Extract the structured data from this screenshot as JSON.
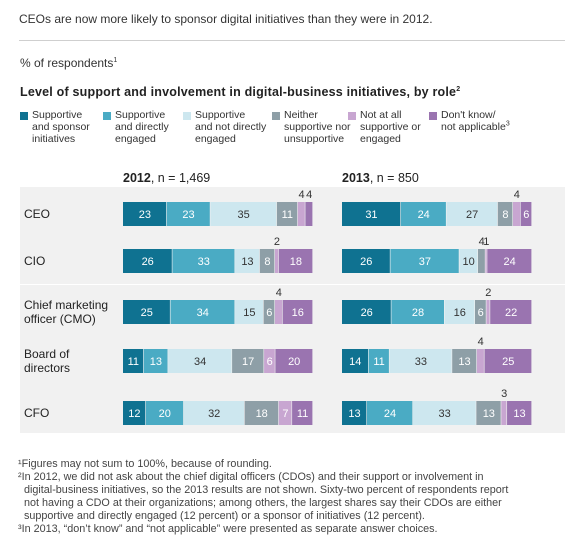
{
  "headline": "CEOs are now more likely to sponsor digital initiatives than they were in 2012.",
  "unit_label": "% of respondents",
  "unit_note": "1",
  "chart_title": "Level of support and involvement in digital-business initiatives, by role",
  "chart_title_note": "2",
  "colors": {
    "supportive_sponsor": "#0f7291",
    "directly_engaged": "#4aabc4",
    "not_directly": "#cde7ef",
    "neither": "#8e9fa7",
    "not_at_all": "#c8a6d1",
    "dont_know": "#9a74b0",
    "band": "#f1f1f1"
  },
  "legend": [
    {
      "lines": [
        "Supportive",
        "and sponsor",
        "initiatives"
      ],
      "color": "#0f7291"
    },
    {
      "lines": [
        "Supportive",
        "and directly",
        "engaged"
      ],
      "color": "#4aabc4"
    },
    {
      "lines": [
        "Supportive",
        "and not directly",
        "engaged"
      ],
      "color": "#cde7ef"
    },
    {
      "lines": [
        "Neither",
        "supportive nor",
        "unsupportive"
      ],
      "color": "#8e9fa7"
    },
    {
      "lines": [
        "Not at all",
        "supportive or",
        "engaged"
      ],
      "color": "#c8a6d1"
    },
    {
      "lines": [
        "Don't know/",
        "not applicable"
      ],
      "note": "3",
      "color": "#9a74b0"
    }
  ],
  "chart_data": {
    "type": "bar",
    "stacked": true,
    "orientation": "horizontal",
    "title": "Level of support and involvement in digital-business initiatives, by role",
    "categories": [
      "CEO",
      "CIO",
      "Chief marketing officer (CMO)",
      "Board of directors",
      "CFO"
    ],
    "category_lines": [
      [
        "CEO"
      ],
      [
        "CIO"
      ],
      [
        "Chief marketing",
        "officer (CMO)"
      ],
      [
        "Board of",
        "directors"
      ],
      [
        "CFO"
      ]
    ],
    "series_names": [
      "Supportive and sponsor initiatives",
      "Supportive and directly engaged",
      "Supportive and not directly engaged",
      "Neither supportive nor unsupportive",
      "Not at all supportive or engaged",
      "Don't know/not applicable"
    ],
    "panels": [
      {
        "year": "2012",
        "n_label": ", n = 1,469",
        "rows": [
          [
            23,
            23,
            35,
            11,
            4,
            4
          ],
          [
            26,
            33,
            13,
            8,
            2,
            18
          ],
          [
            25,
            34,
            15,
            6,
            4,
            16
          ],
          [
            11,
            13,
            34,
            17,
            6,
            20
          ],
          [
            12,
            20,
            32,
            18,
            7,
            11
          ]
        ]
      },
      {
        "year": "2013",
        "n_label": ", n = 850",
        "rows": [
          [
            31,
            24,
            27,
            8,
            4,
            6
          ],
          [
            26,
            37,
            10,
            4,
            1,
            24
          ],
          [
            26,
            28,
            16,
            6,
            2,
            22
          ],
          [
            14,
            11,
            33,
            13,
            4,
            25
          ],
          [
            13,
            24,
            33,
            13,
            3,
            13
          ]
        ]
      }
    ]
  },
  "footnotes": [
    "¹Figures may not sum to 100%, because of rounding.",
    "²In 2012, we did not ask about the chief digital officers (CDOs) and their support or involvement in",
    "digital-business initiatives, so the 2013 results are not shown. Sixty-two percent of respondents report",
    "not having a CDO at their organizations; among others, the largest shares say their CDOs are either",
    "supportive and directly engaged (12 percent) or a sponsor of initiatives (12 percent).",
    "³In 2013, “don’t know” and “not applicable” were presented as separate answer choices."
  ]
}
